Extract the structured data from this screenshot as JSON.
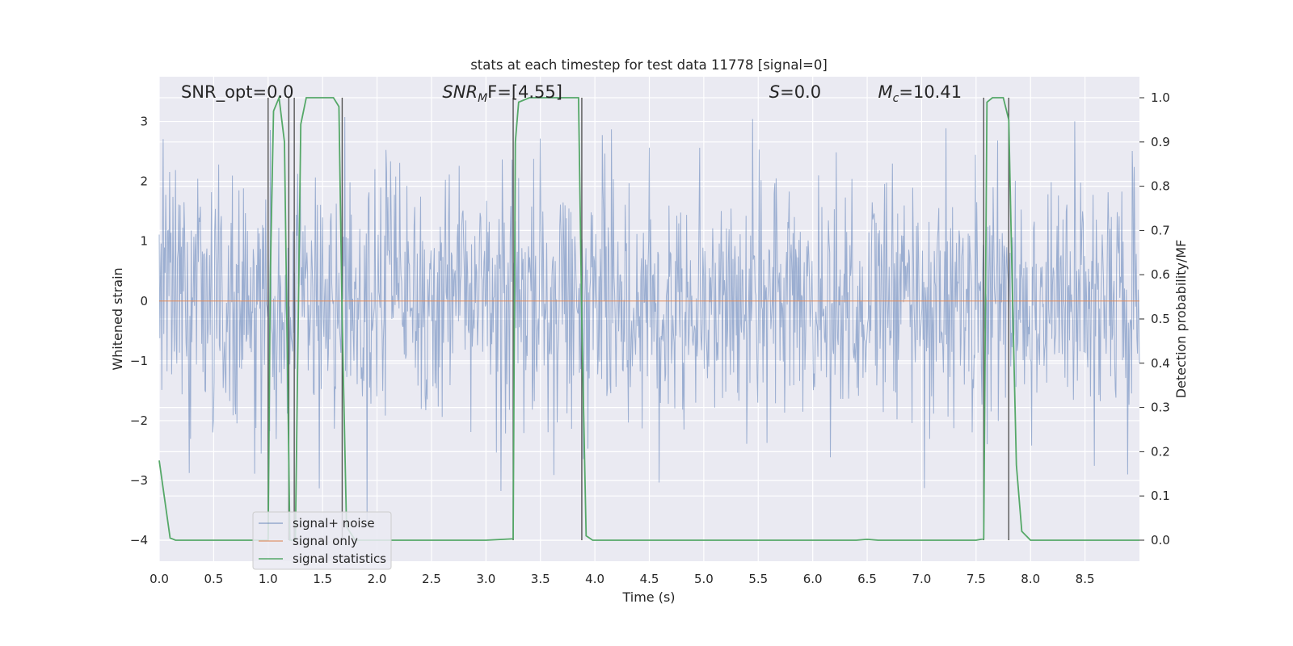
{
  "chart_data": {
    "type": "line",
    "title": "stats at each timestep for test data 11778 [signal=0]",
    "xlabel": "Time (s)",
    "ylabel": "Whitened strain",
    "y2label": "Detection probability/MF",
    "xlim": [
      0.0,
      9.0
    ],
    "ylim": [
      -4.35,
      3.75
    ],
    "y2lim": [
      -0.0475,
      1.0475
    ],
    "xticks": [
      0.0,
      0.5,
      1.0,
      1.5,
      2.0,
      2.5,
      3.0,
      3.5,
      4.0,
      4.5,
      5.0,
      5.5,
      6.0,
      6.5,
      7.0,
      7.5,
      8.0,
      8.5
    ],
    "xtick_labels": [
      "0.0",
      "0.5",
      "1.0",
      "1.5",
      "2.0",
      "2.5",
      "3.0",
      "3.5",
      "4.0",
      "4.5",
      "5.0",
      "5.5",
      "6.0",
      "6.5",
      "7.0",
      "7.5",
      "8.0",
      "8.5"
    ],
    "yticks": [
      -4,
      -3,
      -2,
      -1,
      0,
      1,
      2,
      3
    ],
    "ytick_labels": [
      "−4",
      "−3",
      "−2",
      "−1",
      "0",
      "1",
      "2",
      "3"
    ],
    "y2ticks": [
      0.0,
      0.1,
      0.2,
      0.3,
      0.4,
      0.5,
      0.6,
      0.7,
      0.8,
      0.9,
      1.0
    ],
    "y2tick_labels": [
      "0.0",
      "0.1",
      "0.2",
      "0.3",
      "0.4",
      "0.5",
      "0.6",
      "0.7",
      "0.8",
      "0.9",
      "1.0"
    ],
    "grid": true,
    "legend_position": "lower-left",
    "annotations": [
      {
        "text": "SNR_opt=0.0",
        "x": 0.2
      },
      {
        "text": "SNR",
        "sub": "M",
        "suffix": "F=[4.55]",
        "italic": true,
        "x": 2.6
      },
      {
        "text": "S",
        "suffix": "=0.0",
        "italic": true,
        "x": 5.6
      },
      {
        "text": "M",
        "sub": "c",
        "suffix": "=10.41",
        "italic": true,
        "x": 6.6
      }
    ],
    "series": [
      {
        "name": "signal+ noise",
        "color": "#4c72b0",
        "description_values": {
          "center": 0.0,
          "envelope_min": -4.0,
          "envelope_max": 3.3,
          "dense": true
        }
      },
      {
        "name": "signal only",
        "color": "#dd8452",
        "x": [
          0.0,
          9.0
        ],
        "y": [
          0.0,
          0.0
        ]
      },
      {
        "name": "signal statistics",
        "color": "#55a868",
        "axis": "right",
        "x": [
          0.0,
          0.1,
          0.15,
          0.5,
          1.0,
          1.02,
          1.05,
          1.1,
          1.15,
          1.2,
          1.25,
          1.3,
          1.35,
          1.4,
          1.5,
          1.6,
          1.65,
          1.68,
          1.72,
          1.8,
          2.5,
          3.0,
          3.25,
          3.27,
          3.3,
          3.4,
          3.6,
          3.85,
          3.88,
          3.92,
          3.98,
          4.5,
          5.5,
          6.4,
          6.5,
          6.6,
          7.0,
          7.5,
          7.57,
          7.6,
          7.65,
          7.7,
          7.75,
          7.8,
          7.83,
          7.87,
          7.92,
          8.0,
          8.5,
          9.0
        ],
        "y": [
          0.18,
          0.005,
          0.0,
          0.0,
          0.0,
          0.6,
          0.97,
          1.0,
          0.9,
          0.0,
          0.0,
          0.94,
          1.0,
          1.0,
          1.0,
          1.0,
          0.98,
          0.5,
          0.03,
          0.0,
          0.0,
          0.0,
          0.003,
          0.9,
          0.99,
          1.0,
          1.0,
          1.0,
          0.5,
          0.01,
          0.0,
          0.0,
          0.0,
          0.0,
          0.002,
          0.0,
          0.0,
          0.0,
          0.003,
          0.99,
          1.0,
          1.0,
          1.0,
          0.95,
          0.6,
          0.17,
          0.02,
          0.0,
          0.0,
          0.0
        ]
      }
    ],
    "vertical_lines": [
      1.0,
      1.19,
      1.24,
      1.68,
      3.25,
      3.88,
      7.57,
      7.8
    ]
  }
}
